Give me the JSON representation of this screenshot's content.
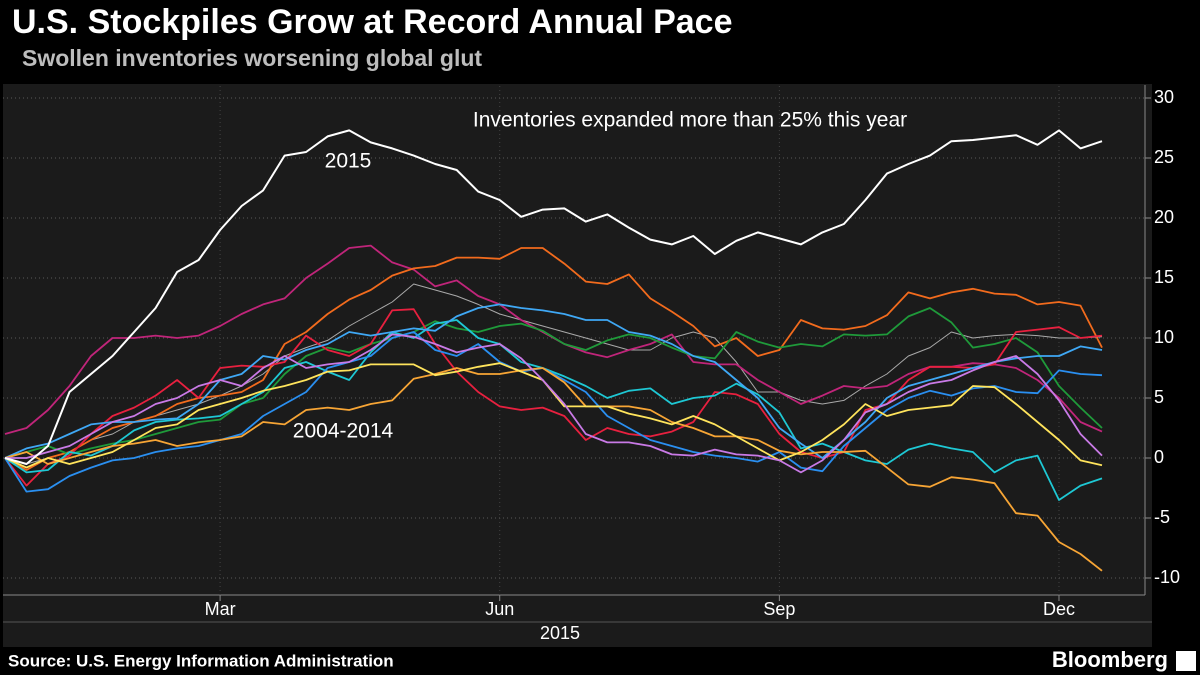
{
  "chart_data": {
    "type": "line",
    "title": "U.S. Stockpiles Grow at Record Annual Pace",
    "subtitle": "Swollen inventories worsening global glut",
    "source": "Source: U.S. Energy Information Administration",
    "brand": "Bloomberg",
    "x_group_label": "2015",
    "annotations": [
      {
        "text": "Inventories expanded more than 25% this year"
      },
      {
        "text": "2015"
      },
      {
        "text": "2004-2014"
      }
    ],
    "categories": [
      null,
      null,
      null,
      null,
      null,
      null,
      null,
      null,
      null,
      null,
      "Mar",
      null,
      null,
      null,
      null,
      null,
      null,
      null,
      null,
      null,
      null,
      null,
      null,
      "Jun",
      null,
      null,
      null,
      null,
      null,
      null,
      null,
      null,
      null,
      null,
      null,
      null,
      "Sep",
      null,
      null,
      null,
      null,
      null,
      null,
      null,
      null,
      null,
      null,
      null,
      null,
      "Dec",
      null,
      null
    ],
    "ylim": [
      -11,
      31
    ],
    "yticks": [
      -10,
      -5,
      0,
      5,
      10,
      15,
      20,
      25,
      30
    ],
    "grid": true,
    "series": [
      {
        "color": "#aaaaaa",
        "values": [
          0,
          -0.5,
          0,
          0.5,
          1.5,
          2,
          3,
          3.5,
          4,
          4.5,
          5.2,
          6,
          7,
          8.5,
          9.2,
          9.8,
          11,
          12,
          13,
          14.5,
          14,
          13.5,
          12.8,
          12,
          11.5,
          11,
          10.5,
          10,
          9.5,
          9,
          9,
          10,
          10.5,
          10,
          8,
          5.5,
          5.5,
          4.8,
          4.5,
          4.8,
          6,
          7,
          8.5,
          9.2,
          10.5,
          10,
          10.2,
          10.3,
          10.2,
          10,
          10,
          10.1
        ]
      },
      {
        "color": "#c0257a",
        "values": [
          2,
          2.5,
          4,
          6,
          8.5,
          10,
          10,
          10.2,
          10,
          10.2,
          11,
          12,
          12.8,
          13.3,
          15,
          16.2,
          17.5,
          17.7,
          16.3,
          15.7,
          14.3,
          14.8,
          13.5,
          12.8,
          11.5,
          10.5,
          9.5,
          8.8,
          8.4,
          9,
          9.5,
          10.3,
          8,
          7.8,
          7.8,
          6.5,
          5.5,
          4.5,
          5.2,
          6,
          5.8,
          6,
          7,
          7.6,
          7.6,
          7.9,
          7.8,
          7.5,
          6.5,
          5,
          3,
          2.2
        ]
      },
      {
        "color": "#f26b1d",
        "values": [
          0,
          -1,
          0,
          0.5,
          1.5,
          2.5,
          3,
          3.5,
          4.5,
          5,
          5.2,
          5.5,
          6.5,
          9.5,
          10.5,
          12,
          13.2,
          14,
          15.2,
          15.8,
          16,
          16.7,
          16.7,
          16.6,
          17.5,
          17.5,
          16.2,
          14.7,
          14.5,
          15.3,
          13.3,
          12.2,
          11,
          9.3,
          10,
          8.5,
          9,
          11.5,
          10.8,
          10.7,
          11,
          11.9,
          13.8,
          13.3,
          13.8,
          14.1,
          13.7,
          13.6,
          12.8,
          13,
          12.7,
          9.2
        ]
      },
      {
        "color": "#1f9a3a",
        "values": [
          0,
          0.5,
          1,
          0.3,
          0.8,
          1.2,
          1.5,
          2,
          2.5,
          3,
          3.2,
          4.5,
          5,
          7,
          8.5,
          9.2,
          8.8,
          9.5,
          10,
          10.5,
          11.4,
          10.8,
          10.5,
          11,
          11.2,
          10.6,
          9.5,
          9,
          9.8,
          10.3,
          10,
          9.2,
          8.5,
          8.3,
          10.5,
          9.7,
          9.2,
          9.5,
          9.3,
          10.3,
          10.2,
          10.3,
          11.8,
          12.5,
          11.3,
          9.2,
          9.5,
          10,
          8.8,
          6,
          4.2,
          2.5
        ]
      },
      {
        "color": "#e8203f",
        "values": [
          0,
          -2.3,
          -0.5,
          0.2,
          2,
          3.5,
          4.2,
          5.2,
          6.5,
          5,
          7.5,
          7.7,
          7.6,
          8,
          10.2,
          9,
          8.5,
          9.5,
          12.3,
          12.4,
          9.5,
          7.2,
          5.5,
          4.3,
          4,
          4.2,
          3.5,
          1.5,
          2.5,
          2,
          1.8,
          2.2,
          3,
          5.5,
          5.3,
          4.5,
          2,
          0.5,
          0,
          0.5,
          4,
          4.5,
          6.5,
          7.6,
          7.6,
          7.5,
          7.8,
          10.5,
          10.7,
          10.9,
          10,
          10.2
        ]
      },
      {
        "color": "#1ec8d4",
        "values": [
          0,
          -1.2,
          -1,
          0.5,
          0.2,
          1,
          2.3,
          3,
          3.2,
          3.3,
          3.5,
          4.5,
          5.5,
          7.5,
          8,
          7.2,
          6.5,
          8.8,
          10.5,
          10,
          11.2,
          11.5,
          10,
          9.5,
          8,
          7.5,
          6.8,
          6,
          5,
          5.6,
          5.8,
          4.5,
          5,
          5.2,
          6.2,
          5.3,
          3.8,
          0.8,
          1.2,
          0.5,
          -0.2,
          -0.5,
          0.7,
          1.2,
          0.8,
          0.5,
          -1.2,
          -0.2,
          0.2,
          -3.5,
          -2.3,
          -1.7
        ]
      },
      {
        "color": "#2a8ff0",
        "values": [
          0,
          -2.8,
          -2.6,
          -1.5,
          -0.8,
          -0.2,
          0,
          0.5,
          0.8,
          1,
          1.5,
          2,
          3.5,
          4.5,
          5.5,
          7.5,
          8,
          8.5,
          10,
          10.5,
          9,
          8.5,
          9.5,
          8,
          7.2,
          7.5,
          6.5,
          5.5,
          3.5,
          2.5,
          1.5,
          1,
          0.5,
          0.2,
          0,
          -0.3,
          0.5,
          -0.8,
          -1.1,
          1,
          2.5,
          4,
          5,
          5.6,
          5.2,
          5.8,
          6,
          5.5,
          5.4,
          7.3,
          7,
          6.9
        ]
      },
      {
        "color": "#3fa8f5",
        "values": [
          0,
          0.8,
          1.2,
          2,
          2.8,
          3,
          3,
          3.2,
          3.3,
          4.5,
          6.5,
          7,
          8.5,
          8.2,
          9,
          9.5,
          10.5,
          10.2,
          10.5,
          10.8,
          10.6,
          11.8,
          12.5,
          12.8,
          12.5,
          12.3,
          12,
          11.5,
          11.5,
          10.5,
          10.2,
          9.5,
          8.5,
          8,
          6.5,
          5,
          2.5,
          1.2,
          0,
          1.5,
          3,
          5,
          6,
          6.5,
          7,
          7.5,
          8,
          8.3,
          8.5,
          8.5,
          9.3,
          9
        ]
      },
      {
        "color": "#f7a535",
        "values": [
          0,
          0.5,
          -0.5,
          0,
          0.5,
          1,
          1.2,
          1.5,
          1,
          1.3,
          1.5,
          1.8,
          3,
          2.8,
          4,
          4.2,
          4,
          4.5,
          4.8,
          6.6,
          7,
          7.5,
          7,
          7,
          7.3,
          7.5,
          6.3,
          4.3,
          4.3,
          4.3,
          4,
          3,
          2.5,
          1.8,
          1.8,
          1.5,
          0.6,
          0.3,
          0.5,
          0.5,
          0.6,
          -0.8,
          -2.2,
          -2.4,
          -1.6,
          -1.8,
          -2.1,
          -4.6,
          -4.8,
          -7,
          -8,
          -9.4
        ]
      },
      {
        "color": "#ffe45c",
        "values": [
          0,
          -0.8,
          0,
          -0.5,
          0,
          0.5,
          1.5,
          2.5,
          2.8,
          4,
          4.5,
          5,
          5.6,
          6,
          6.5,
          7.2,
          7.3,
          7.8,
          7.8,
          7.8,
          6.9,
          7.2,
          7.6,
          7.9,
          7.2,
          6.5,
          4.3,
          4.3,
          4.3,
          3.7,
          3.3,
          2.8,
          3.5,
          2.8,
          1.8,
          0.8,
          -0.2,
          0.5,
          1.5,
          2.8,
          4.5,
          3.5,
          4,
          4.2,
          4.4,
          6,
          5.9,
          4.5,
          3,
          1.5,
          -0.2,
          -0.6
        ]
      },
      {
        "color": "#c97ae6",
        "values": [
          0,
          0,
          0.5,
          1,
          2,
          3,
          3.5,
          4.5,
          5,
          6,
          6.5,
          6,
          7.5,
          8.5,
          7.5,
          7.8,
          8,
          9,
          10.3,
          10.1,
          9.5,
          8.8,
          9.2,
          9.5,
          8.3,
          6.5,
          4.5,
          2,
          1.3,
          1.3,
          1,
          0.3,
          0.2,
          0.7,
          0.3,
          0.2,
          -0.2,
          -1.2,
          -0.2,
          1.5,
          3.8,
          4.5,
          5.5,
          6.2,
          6.5,
          7.3,
          8,
          8.5,
          7,
          4.8,
          2,
          0.2
        ]
      },
      {
        "color": "#ffffff",
        "values": [
          0,
          -0.5,
          1,
          5.5,
          7,
          8.5,
          10.5,
          12.5,
          15.5,
          16.5,
          19,
          21,
          22.3,
          25.2,
          25.5,
          26.8,
          27.3,
          26.3,
          25.8,
          25.2,
          24.5,
          24,
          22.2,
          21.5,
          20.1,
          20.7,
          20.8,
          19.7,
          20.3,
          19.2,
          18.2,
          17.8,
          18.5,
          17,
          18.1,
          18.8,
          18.3,
          17.8,
          18.8,
          19.5,
          21.5,
          23.7,
          24.5,
          25.2,
          26.4,
          26.5,
          26.7,
          26.9,
          26.1,
          27.3,
          25.8,
          26.4
        ]
      }
    ]
  }
}
